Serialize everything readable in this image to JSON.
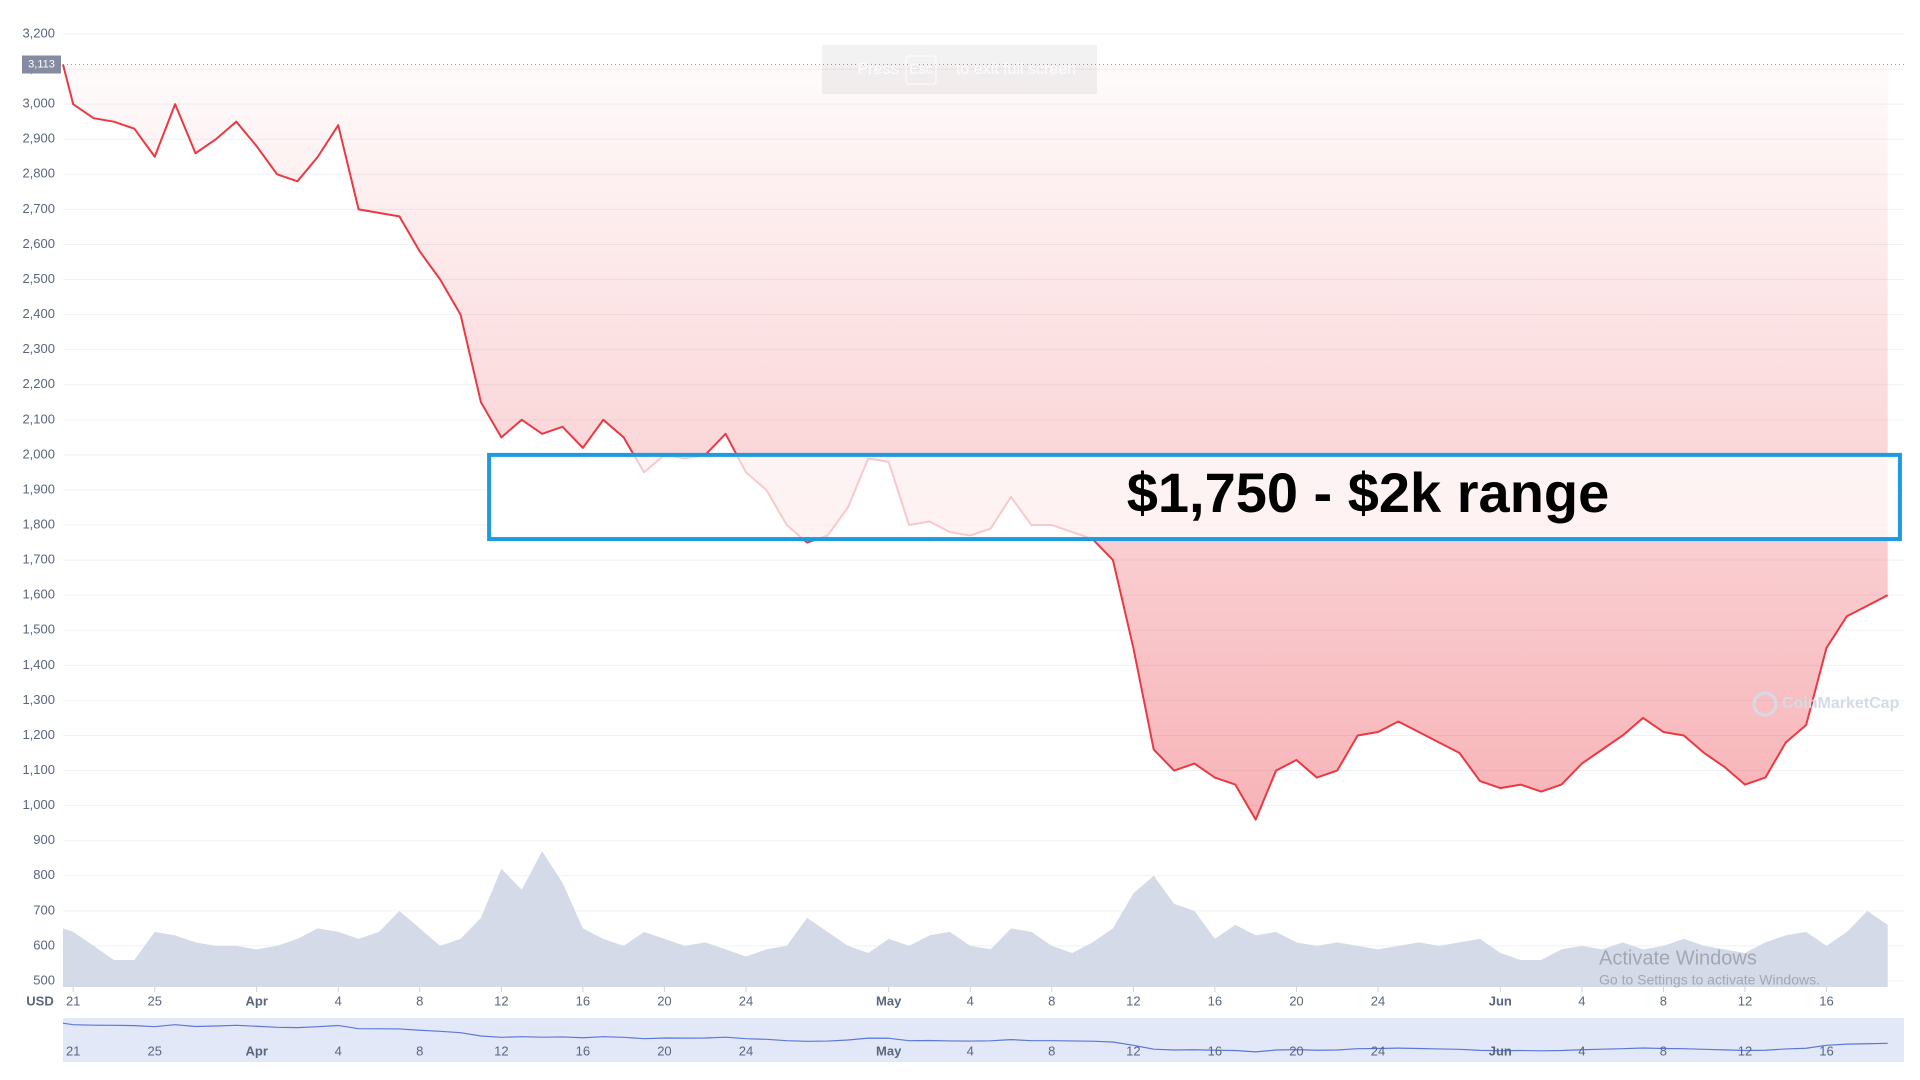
{
  "chart_data": {
    "type": "line",
    "x": [
      0.5,
      1,
      2,
      3,
      4,
      5,
      6,
      7,
      8,
      9,
      10,
      11,
      12,
      13,
      14,
      15,
      16,
      17,
      18,
      19,
      20,
      21,
      22,
      23,
      24,
      25,
      26,
      27,
      28,
      29,
      30,
      31,
      32,
      33,
      34,
      35,
      36,
      37,
      38,
      39,
      40,
      41,
      42,
      43,
      44,
      45,
      46,
      47,
      48,
      49,
      50,
      51,
      52,
      53,
      54,
      55,
      56,
      57,
      58,
      59,
      60,
      61,
      62,
      63,
      64,
      65,
      66,
      67,
      68,
      69,
      70,
      71,
      72,
      73,
      74,
      75,
      76,
      77,
      78,
      79,
      80,
      81,
      82,
      83,
      84,
      85,
      86,
      87,
      88,
      89,
      90
    ],
    "series": [
      {
        "name": "Price",
        "color": "#ea3943",
        "values": [
          3113,
          3000,
          2960,
          2950,
          2930,
          2850,
          3000,
          2860,
          2900,
          2950,
          2880,
          2800,
          2780,
          2850,
          2940,
          2700,
          2690,
          2680,
          2580,
          2500,
          2400,
          2150,
          2050,
          2100,
          2060,
          2080,
          2020,
          2100,
          2050,
          1950,
          2000,
          1990,
          2000,
          2060,
          1950,
          1900,
          1800,
          1750,
          1770,
          1850,
          1990,
          1980,
          1800,
          1810,
          1780,
          1770,
          1790,
          1880,
          1800,
          1800,
          1780,
          1760,
          1700,
          1450,
          1160,
          1100,
          1120,
          1080,
          1060,
          960,
          1100,
          1130,
          1080,
          1100,
          1200,
          1210,
          1240,
          1210,
          1180,
          1150,
          1070,
          1050,
          1060,
          1040,
          1060,
          1120,
          1160,
          1200,
          1250,
          1210,
          1200,
          1150,
          1110,
          1060,
          1080,
          1180,
          1230,
          1450,
          1540,
          1570,
          1600
        ]
      },
      {
        "name": "Volume",
        "color": "#cfd6e4",
        "values": [
          650,
          640,
          600,
          560,
          560,
          640,
          630,
          610,
          600,
          600,
          590,
          600,
          620,
          650,
          640,
          620,
          640,
          700,
          650,
          600,
          620,
          680,
          820,
          760,
          870,
          780,
          650,
          620,
          600,
          640,
          620,
          600,
          610,
          590,
          570,
          590,
          600,
          680,
          640,
          600,
          580,
          620,
          600,
          630,
          640,
          600,
          590,
          650,
          640,
          600,
          580,
          610,
          650,
          750,
          800,
          720,
          700,
          620,
          660,
          630,
          640,
          610,
          600,
          610,
          600,
          590,
          600,
          610,
          600,
          610,
          620,
          580,
          560,
          560,
          590,
          600,
          590,
          610,
          590,
          600,
          620,
          600,
          590,
          580,
          610,
          630,
          640,
          600,
          640,
          700,
          660
        ]
      }
    ],
    "xlim": [
      0.5,
      90.8
    ],
    "xticks": [
      {
        "value": 1,
        "label": "21"
      },
      {
        "value": 5,
        "label": "25"
      },
      {
        "value": 10,
        "label": "Apr"
      },
      {
        "value": 14,
        "label": "4"
      },
      {
        "value": 18,
        "label": "8"
      },
      {
        "value": 22,
        "label": "12"
      },
      {
        "value": 26,
        "label": "16"
      },
      {
        "value": 30,
        "label": "20"
      },
      {
        "value": 34,
        "label": "24"
      },
      {
        "value": 41,
        "label": "May"
      },
      {
        "value": 45,
        "label": "4"
      },
      {
        "value": 49,
        "label": "8"
      },
      {
        "value": 53,
        "label": "12"
      },
      {
        "value": 57,
        "label": "16"
      },
      {
        "value": 61,
        "label": "20"
      },
      {
        "value": 65,
        "label": "24"
      },
      {
        "value": 71,
        "label": "Jun"
      },
      {
        "value": 75,
        "label": "4"
      },
      {
        "value": 79,
        "label": "8"
      },
      {
        "value": 83,
        "label": "12"
      },
      {
        "value": 87,
        "label": "16"
      }
    ],
    "ylim": [
      500,
      3200
    ],
    "yticks": [
      500,
      600,
      700,
      800,
      900,
      {
        "value": 1000,
        "label": "1,000"
      },
      {
        "value": 1100,
        "label": "1,100"
      },
      {
        "value": 1200,
        "label": "1,200"
      },
      {
        "value": 1300,
        "label": "1,300"
      },
      {
        "value": 1400,
        "label": "1,400"
      },
      {
        "value": 1500,
        "label": "1,500"
      },
      {
        "value": 1600,
        "label": "1,600"
      },
      {
        "value": 1700,
        "label": "1,700"
      },
      {
        "value": 1800,
        "label": "1,800"
      },
      {
        "value": 1900,
        "label": "1,900"
      },
      {
        "value": 2000,
        "label": "2,000"
      },
      {
        "value": 2100,
        "label": "2,100"
      },
      {
        "value": 2200,
        "label": "2,200"
      },
      {
        "value": 2300,
        "label": "2,300"
      },
      {
        "value": 2400,
        "label": "2,400"
      },
      {
        "value": 2500,
        "label": "2,500"
      },
      {
        "value": 2600,
        "label": "2,600"
      },
      {
        "value": 2700,
        "label": "2,700"
      },
      {
        "value": 2800,
        "label": "2,800"
      },
      {
        "value": 2900,
        "label": "2,900"
      },
      {
        "value": 3000,
        "label": "3,000"
      },
      {
        "value": 3100,
        "label": "3,100"
      },
      {
        "value": 3200,
        "label": "3,200"
      }
    ],
    "grid": true,
    "y_axis_label": "USD",
    "reference": {
      "value": 3113,
      "label": "3,113"
    },
    "highlight": {
      "x": [
        21.4,
        90.6
      ],
      "y": [
        1760,
        2000
      ],
      "label": "$1,750 - $2k range",
      "color": "#1e9bde"
    },
    "fullscreen_notice": [
      "Press",
      "Esc",
      "to exit full screen"
    ],
    "watermark": "CoinMarketCap",
    "os_notice": [
      "Activate Windows",
      "Go to Settings to activate Windows."
    ]
  }
}
